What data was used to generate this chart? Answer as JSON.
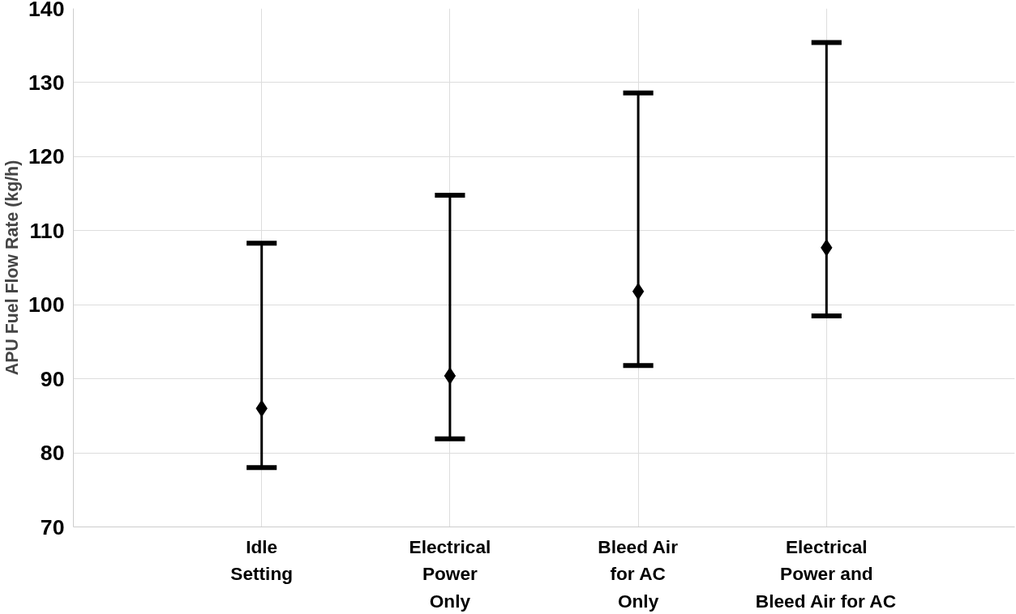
{
  "chart_data": {
    "type": "scatter",
    "ylabel": "APU Fuel Flow Rate (kg/h)",
    "categories": [
      "Idle\nSetting",
      "Electrical\nPower\nOnly",
      "Bleed Air\nfor AC\nOnly",
      "Electrical\nPower and\nBleed Air for AC"
    ],
    "values": [
      86.0,
      90.4,
      101.8,
      107.7
    ],
    "errors": [
      [
        78.0,
        108.3
      ],
      [
        81.9,
        114.8
      ],
      [
        91.8,
        128.6
      ],
      [
        98.5,
        135.4
      ]
    ],
    "color": "#000000",
    "marker": "diamond",
    "grid": true,
    "ylim": [
      70,
      140
    ],
    "yticks": [
      70,
      80,
      90,
      100,
      110,
      120,
      130,
      140
    ]
  }
}
